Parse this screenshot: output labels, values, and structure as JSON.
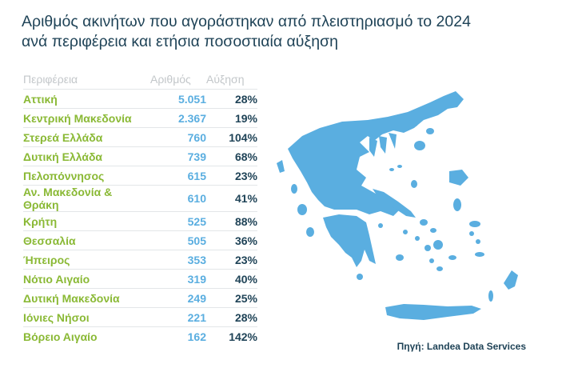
{
  "title_line1": "Αριθμός ακινήτων που αγοράστηκαν από πλειστηριασμό το 2024",
  "title_line2": "ανά περιφέρεια και ετήσια ποσοστιαία αύξηση",
  "source": "Πηγή: Landea Data Services",
  "colors": {
    "title": "#1f4357",
    "region": "#8ab935",
    "count": "#5aaee0",
    "growth": "#1f4357",
    "map": "#5aaee0"
  },
  "map_icon": "greece-map-icon",
  "chart_data": {
    "type": "table",
    "columns": [
      "Περιφέρεια",
      "Αριθμός",
      "Αύξηση"
    ],
    "rows": [
      {
        "region": "Αττική",
        "count": "5.051",
        "growth": "28%"
      },
      {
        "region": "Κεντρική Μακεδονία",
        "count": "2.367",
        "growth": "19%"
      },
      {
        "region": "Στερεά Ελλάδα",
        "count": "760",
        "growth": "104%"
      },
      {
        "region": "Δυτική Ελλάδα",
        "count": "739",
        "growth": "68%"
      },
      {
        "region": "Πελοπόννησος",
        "count": "615",
        "growth": "23%"
      },
      {
        "region": "Αν. Μακεδονία & Θράκη",
        "count": "610",
        "growth": "41%"
      },
      {
        "region": "Κρήτη",
        "count": "525",
        "growth": "88%"
      },
      {
        "region": "Θεσσαλία",
        "count": "505",
        "growth": "36%"
      },
      {
        "region": "Ήπειρος",
        "count": "353",
        "growth": "23%"
      },
      {
        "region": "Νότιο Αιγαίο",
        "count": "319",
        "growth": "40%"
      },
      {
        "region": "Δυτική Μακεδονία",
        "count": "249",
        "growth": "25%"
      },
      {
        "region": "Ιόνιες Νήσοι",
        "count": "221",
        "growth": "28%"
      },
      {
        "region": "Βόρειο Αιγαίο",
        "count": "162",
        "growth": "142%"
      }
    ]
  }
}
